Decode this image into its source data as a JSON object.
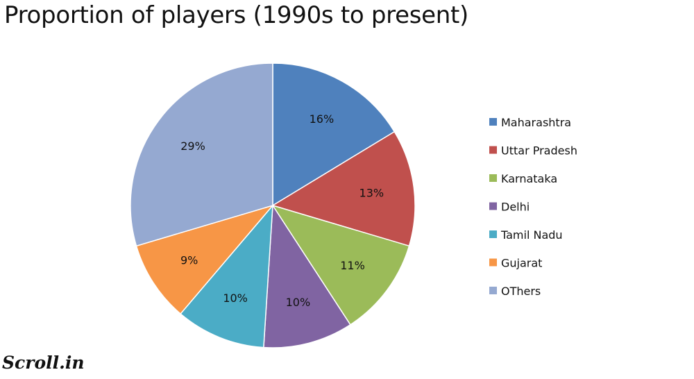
{
  "chart_data": {
    "type": "pie",
    "title": "Proportion of players (1990s to present)",
    "categories": [
      "Maharashtra",
      "Uttar Pradesh",
      "Karnataka",
      "Delhi",
      "Tamil Nadu",
      "Gujarat",
      "OThers"
    ],
    "values": [
      16,
      13,
      11,
      10,
      10,
      9,
      29
    ],
    "labels": [
      "16%",
      "13%",
      "11%",
      "10%",
      "10%",
      "9%",
      "29%"
    ],
    "colors": [
      "#4f81bd",
      "#c0504d",
      "#9bbb59",
      "#8064a2",
      "#4bacc6",
      "#f79646",
      "#95a9d1"
    ],
    "start_angle": "12 o'clock, clockwise",
    "legend_position": "right"
  },
  "brand": "Scroll.in"
}
